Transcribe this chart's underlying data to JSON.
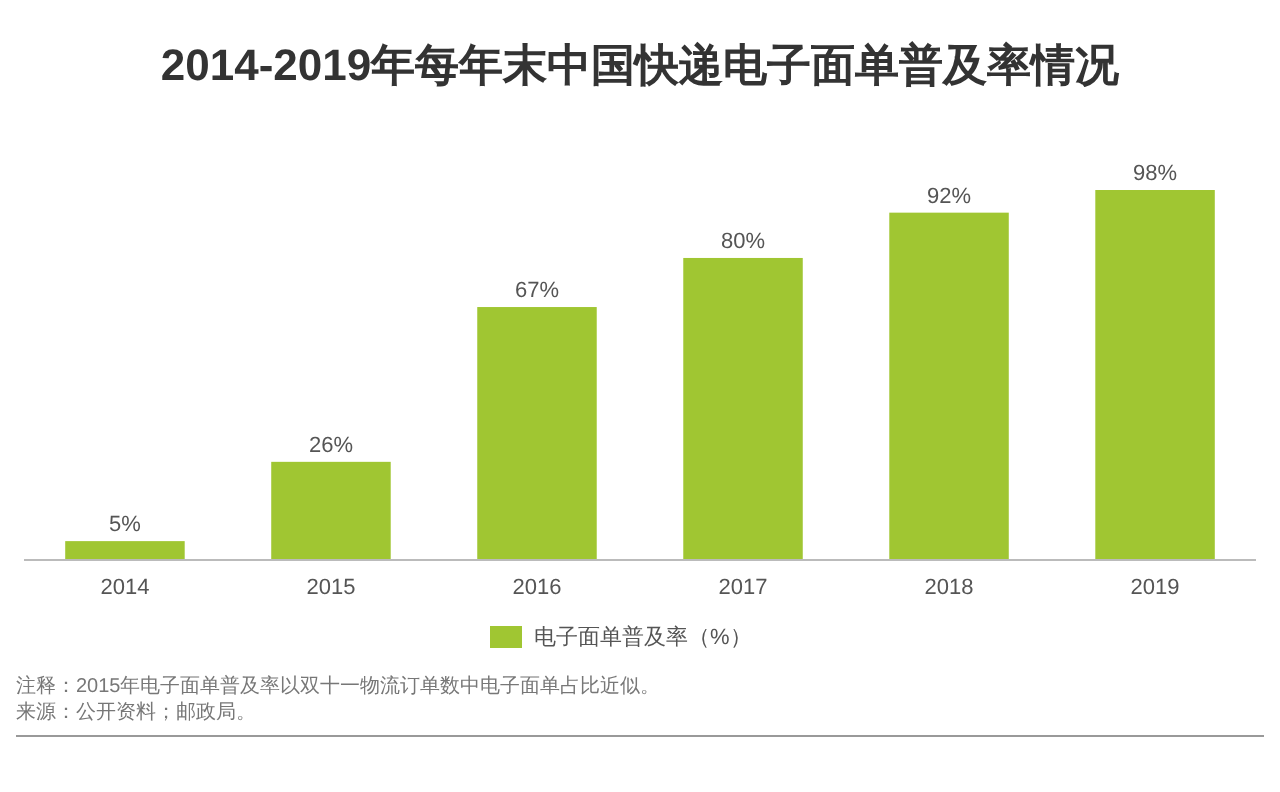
{
  "chart_data": {
    "type": "bar",
    "title": "2014-2019年每年末中国快递电子面单普及率情况",
    "categories": [
      "2014",
      "2015",
      "2016",
      "2017",
      "2018",
      "2019"
    ],
    "series": [
      {
        "name": "电子面单普及率（%）",
        "color": "#a0c632",
        "values": [
          5,
          26,
          67,
          80,
          92,
          98
        ],
        "value_labels": [
          "5%",
          "26%",
          "67%",
          "80%",
          "92%",
          "98%"
        ]
      }
    ],
    "legend": "bottom",
    "annotations": [
      "注释：2015年电子面单普及率以双十一物流订单数中电子面单占比近似。",
      "来源：公开资料；邮政局。"
    ]
  }
}
